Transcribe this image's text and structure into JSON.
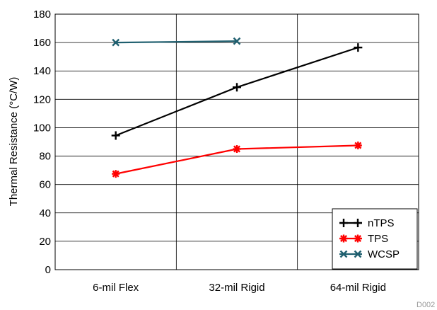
{
  "chart_data": {
    "type": "line",
    "categories": [
      "6-mil Flex",
      "32-mil Rigid",
      "64-mil Rigid"
    ],
    "ylabel": "Thermal Resistance (°C/W)",
    "xlabel": "",
    "ylim": [
      0,
      180
    ],
    "yticks": [
      0,
      20,
      40,
      60,
      80,
      100,
      120,
      140,
      160,
      180
    ],
    "grid": true,
    "legend_position": "bottom-right",
    "series": [
      {
        "name": "nTPS",
        "values": [
          94.5,
          128.5,
          156.5
        ],
        "color": "#000000",
        "marker": "plus"
      },
      {
        "name": "TPS",
        "values": [
          67.5,
          85,
          87.5
        ],
        "color": "#ff0000",
        "marker": "asterisk"
      },
      {
        "name": "WCSP",
        "values": [
          160,
          161,
          null
        ],
        "color": "#1f5f6f",
        "marker": "double-x"
      }
    ]
  },
  "figure_id": "D002"
}
